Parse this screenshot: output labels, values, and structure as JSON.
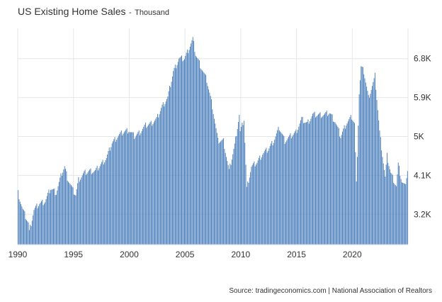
{
  "header": {
    "title": "US Existing Home Sales",
    "separator": "-",
    "unit": "Thousand"
  },
  "source": "Source: tradingeconomics.com | National Association of Realtors",
  "colors": {
    "bar": "#4a7ebb",
    "grid": "#e6e6e6",
    "text": "#333333",
    "axis": "#ccd6eb"
  },
  "chart_data": {
    "type": "bar",
    "title": "US Existing Home Sales",
    "subtitle": "Thousand",
    "xlabel": "",
    "ylabel": "",
    "ylim": [
      2500,
      7500
    ],
    "x_range": [
      "1990-01",
      "2024-12"
    ],
    "grid": true,
    "legend": "none",
    "x_ticks": [
      "1990",
      "1995",
      "2000",
      "2005",
      "2010",
      "2015",
      "2020"
    ],
    "y_ticks": [
      {
        "value": 3200,
        "label": "3.2K"
      },
      {
        "value": 4100,
        "label": "4.1K"
      },
      {
        "value": 5000,
        "label": "5K"
      },
      {
        "value": 5900,
        "label": "5.9K"
      },
      {
        "value": 6800,
        "label": "6.8K"
      }
    ],
    "series": [
      {
        "frequency": "monthly, values in thousands (annualized)",
        "anchors": [
          [
            "1990-01",
            3700
          ],
          [
            "1990-06",
            3300
          ],
          [
            "1990-12",
            3000
          ],
          [
            "1991-01",
            2800
          ],
          [
            "1991-06",
            3300
          ],
          [
            "1991-12",
            3450
          ],
          [
            "1992-06",
            3500
          ],
          [
            "1992-12",
            3800
          ],
          [
            "1993-06",
            3700
          ],
          [
            "1993-12",
            4150
          ],
          [
            "1994-03",
            4300
          ],
          [
            "1994-06",
            4050
          ],
          [
            "1994-12",
            3750
          ],
          [
            "1995-03",
            3650
          ],
          [
            "1995-06",
            4000
          ],
          [
            "1995-12",
            4150
          ],
          [
            "1996-06",
            4200
          ],
          [
            "1996-12",
            4200
          ],
          [
            "1997-06",
            4350
          ],
          [
            "1997-12",
            4500
          ],
          [
            "1998-06",
            4850
          ],
          [
            "1998-12",
            5000
          ],
          [
            "1999-06",
            5100
          ],
          [
            "1999-12",
            5150
          ],
          [
            "2000-06",
            5000
          ],
          [
            "2000-12",
            5100
          ],
          [
            "2001-06",
            5250
          ],
          [
            "2001-12",
            5300
          ],
          [
            "2002-06",
            5400
          ],
          [
            "2002-12",
            5700
          ],
          [
            "2003-06",
            5900
          ],
          [
            "2003-12",
            6500
          ],
          [
            "2004-06",
            6800
          ],
          [
            "2004-12",
            6800
          ],
          [
            "2005-06",
            7100
          ],
          [
            "2005-09",
            7250
          ],
          [
            "2005-12",
            6900
          ],
          [
            "2006-06",
            6600
          ],
          [
            "2006-12",
            6300
          ],
          [
            "2007-06",
            5700
          ],
          [
            "2007-12",
            4900
          ],
          [
            "2008-06",
            4900
          ],
          [
            "2008-12",
            4200
          ],
          [
            "2009-03",
            4500
          ],
          [
            "2009-06",
            4800
          ],
          [
            "2009-11",
            5500
          ],
          [
            "2009-12",
            5100
          ],
          [
            "2010-04",
            5400
          ],
          [
            "2010-07",
            3800
          ],
          [
            "2010-12",
            4300
          ],
          [
            "2011-06",
            4400
          ],
          [
            "2011-12",
            4600
          ],
          [
            "2012-06",
            4700
          ],
          [
            "2012-12",
            4900
          ],
          [
            "2013-06",
            5200
          ],
          [
            "2013-12",
            4900
          ],
          [
            "2014-06",
            5000
          ],
          [
            "2014-12",
            5100
          ],
          [
            "2015-06",
            5400
          ],
          [
            "2015-12",
            5300
          ],
          [
            "2016-06",
            5500
          ],
          [
            "2016-12",
            5500
          ],
          [
            "2017-06",
            5500
          ],
          [
            "2017-12",
            5550
          ],
          [
            "2018-06",
            5350
          ],
          [
            "2018-12",
            5000
          ],
          [
            "2019-06",
            5300
          ],
          [
            "2019-12",
            5450
          ],
          [
            "2020-03",
            5300
          ],
          [
            "2020-05",
            3900
          ],
          [
            "2020-08",
            6000
          ],
          [
            "2020-10",
            6600
          ],
          [
            "2021-01",
            6500
          ],
          [
            "2021-06",
            5900
          ],
          [
            "2021-12",
            6300
          ],
          [
            "2022-01",
            6400
          ],
          [
            "2022-06",
            5100
          ],
          [
            "2022-12",
            4050
          ],
          [
            "2023-02",
            4550
          ],
          [
            "2023-06",
            4150
          ],
          [
            "2023-12",
            3850
          ],
          [
            "2024-02",
            4350
          ],
          [
            "2024-06",
            3950
          ],
          [
            "2024-09",
            3850
          ],
          [
            "2024-12",
            4200
          ]
        ]
      }
    ]
  }
}
